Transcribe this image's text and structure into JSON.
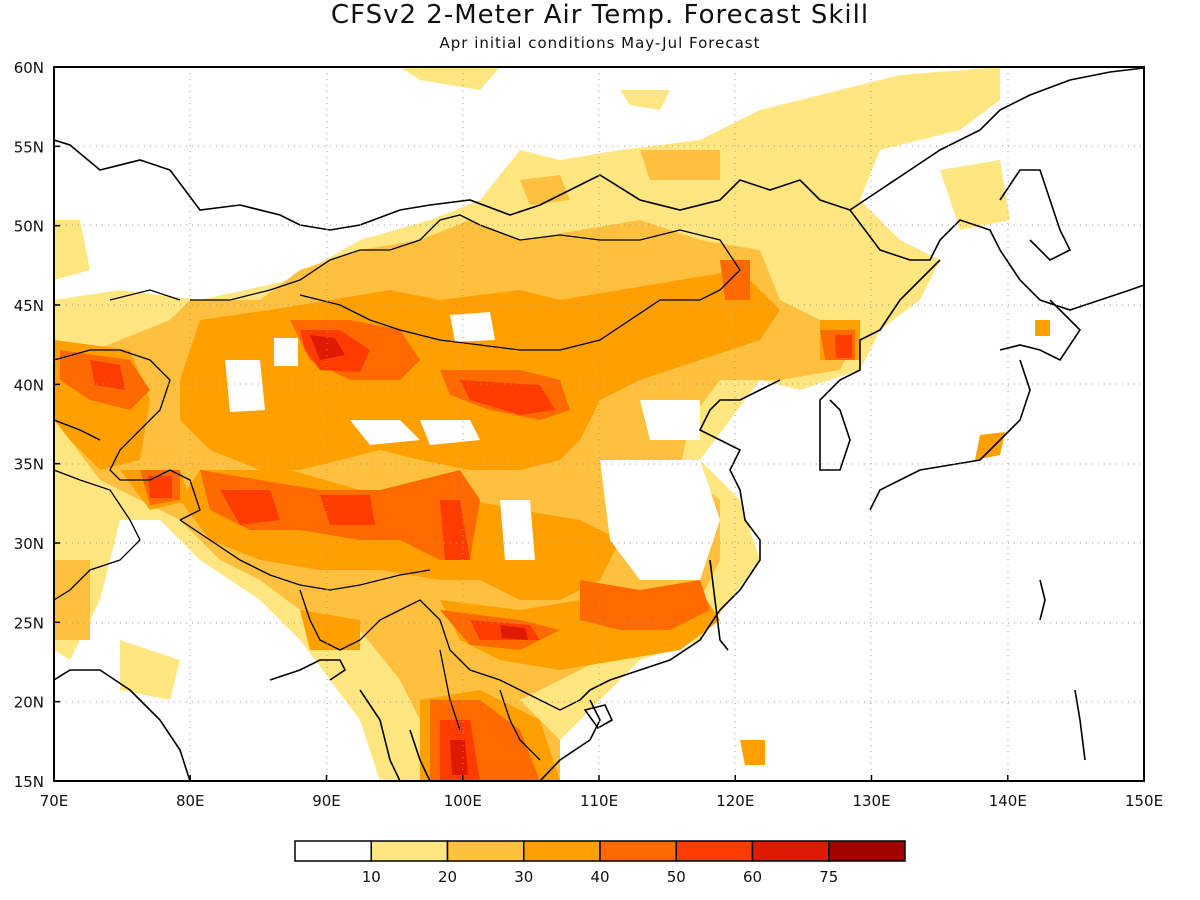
{
  "title": "CFSv2 2-Meter Air Temp. Forecast Skill",
  "subtitle": "Apr initial conditions  May-Jul Forecast",
  "map": {
    "lon_range": [
      70,
      150
    ],
    "lat_range": [
      15,
      60
    ],
    "lon_ticks": [
      "70E",
      "80E",
      "90E",
      "100E",
      "110E",
      "120E",
      "130E",
      "140E",
      "150E"
    ],
    "lat_ticks": [
      "15N",
      "20N",
      "25N",
      "30N",
      "35N",
      "40N",
      "45N",
      "50N",
      "55N",
      "60N"
    ],
    "grid": "dotted"
  },
  "colorbar": {
    "colors": [
      "#ffffff",
      "#ffe680",
      "#ffc040",
      "#ffa000",
      "#ff6a00",
      "#ff3c00",
      "#e01a00",
      "#a00000"
    ],
    "labels": [
      "10",
      "20",
      "30",
      "40",
      "50",
      "60",
      "75"
    ]
  }
}
